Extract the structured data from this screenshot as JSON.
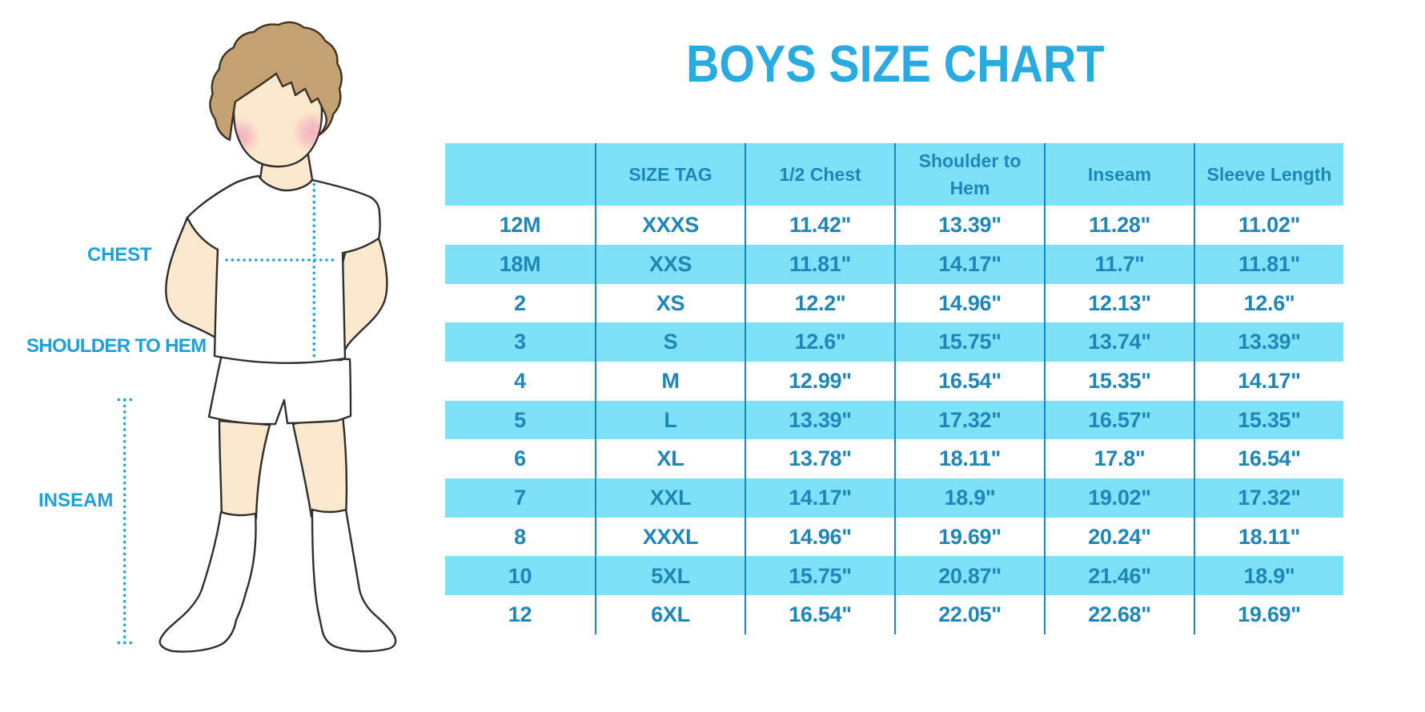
{
  "title": "BOYS SIZE CHART",
  "figure": {
    "description": "illustration of a boy in white t-shirt, shorts and knee socks with dotted measurement guides",
    "labels": {
      "chest": "CHEST",
      "shoulder_to_hem": "SHOULDER TO HEM",
      "inseam": "INSEAM"
    }
  },
  "colors": {
    "title_blue": "#29abe2",
    "label_blue": "#1da0dc",
    "table_band_cyan": "#7ee1f8",
    "table_text_blue": "#1e87b8",
    "table_divider_blue": "#1787be",
    "dotted_line_blue": "#1ea3e2",
    "skin": "#fce8cc",
    "hair": "#c3a173",
    "hair_outline": "#3c3225",
    "blush": "#f1a6bc",
    "outline": "#2e2e2e"
  },
  "chart_data": {
    "type": "table",
    "title": "BOYS SIZE CHART",
    "columns": [
      "",
      "SIZE TAG",
      "1/2 Chest",
      "Shoulder to Hem",
      "Inseam",
      "Sleeve Length"
    ],
    "rows": [
      [
        "12M",
        "XXXS",
        "11.42\"",
        "13.39\"",
        "11.28\"",
        "11.02\""
      ],
      [
        "18M",
        "XXS",
        "11.81\"",
        "14.17\"",
        "11.7\"",
        "11.81\""
      ],
      [
        "2",
        "XS",
        "12.2\"",
        "14.96\"",
        "12.13\"",
        "12.6\""
      ],
      [
        "3",
        "S",
        "12.6\"",
        "15.75\"",
        "13.74\"",
        "13.39\""
      ],
      [
        "4",
        "M",
        "12.99\"",
        "16.54\"",
        "15.35\"",
        "14.17\""
      ],
      [
        "5",
        "L",
        "13.39\"",
        "17.32\"",
        "16.57\"",
        "15.35\""
      ],
      [
        "6",
        "XL",
        "13.78\"",
        "18.11\"",
        "17.8\"",
        "16.54\""
      ],
      [
        "7",
        "XXL",
        "14.17\"",
        "18.9\"",
        "19.02\"",
        "17.32\""
      ],
      [
        "8",
        "XXXL",
        "14.96\"",
        "19.69\"",
        "20.24\"",
        "18.11\""
      ],
      [
        "10",
        "5XL",
        "15.75\"",
        "20.87\"",
        "21.46\"",
        "18.9\""
      ],
      [
        "12",
        "6XL",
        "16.54\"",
        "22.05\"",
        "22.68\"",
        "19.69\""
      ]
    ],
    "striping": "header and alternate rows light cyan, others white",
    "legend": "none",
    "grid": "vertical column dividers only"
  }
}
